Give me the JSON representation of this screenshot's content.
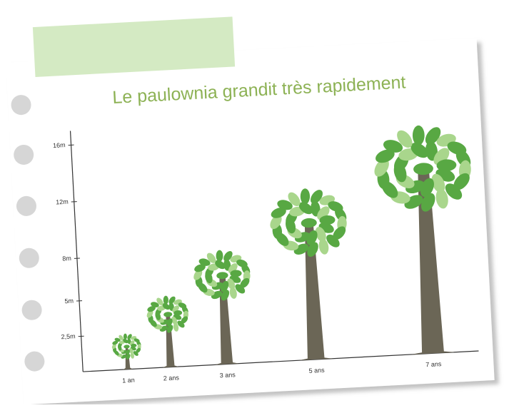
{
  "chart_data": {
    "type": "tree-pictogram",
    "title": "Le paulownia grandit très rapidement",
    "categories": [
      "1 an",
      "2 ans",
      "3 ans",
      "5 ans",
      "7 ans"
    ],
    "values": [
      2.5,
      5,
      8,
      12,
      16
    ],
    "ylim": [
      0,
      17
    ],
    "yticks": [
      {
        "value": 2.5,
        "label": "2,5m"
      },
      {
        "value": 5,
        "label": "5m"
      },
      {
        "value": 8,
        "label": "8m"
      },
      {
        "value": 12,
        "label": "12m"
      },
      {
        "value": 16,
        "label": "16m"
      }
    ],
    "trunk_color": "#6b6656",
    "leaf_colors": [
      "#58a843",
      "#a9d68c"
    ],
    "title_color": "#8db255"
  }
}
